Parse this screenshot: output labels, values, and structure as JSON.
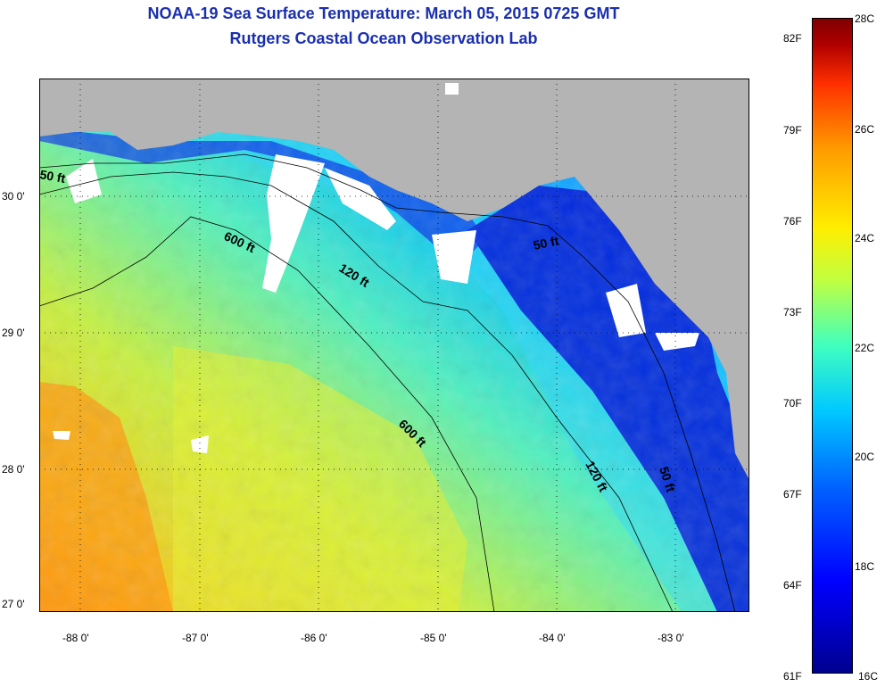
{
  "title": {
    "line1": "NOAA-19 Sea Surface Temperature:  March 05, 2015 0725 GMT",
    "line2": "Rutgers Coastal Ocean Observation Lab"
  },
  "axes": {
    "lat_labels": [
      "30 0'",
      "29 0'",
      "28 0'",
      "27 0'"
    ],
    "lon_labels": [
      "-88 0'",
      "-87 0'",
      "-86 0'",
      "-85 0'",
      "-84 0'",
      "-83 0'"
    ]
  },
  "contour_labels": [
    "50 ft",
    "600 ft",
    "120 ft",
    "50 ft",
    "600 ft",
    "120 ft",
    "50 ft"
  ],
  "colorbar": {
    "fahrenheit": [
      "82F",
      "79F",
      "76F",
      "73F",
      "70F",
      "67F",
      "64F",
      "61F"
    ],
    "celsius": [
      "28C",
      "26C",
      "24C",
      "22C",
      "20C",
      "18C",
      "16C"
    ]
  },
  "colors": {
    "land": "#b4b4b4",
    "cloud": "#ffffff",
    "title": "#1a2fb0"
  }
}
